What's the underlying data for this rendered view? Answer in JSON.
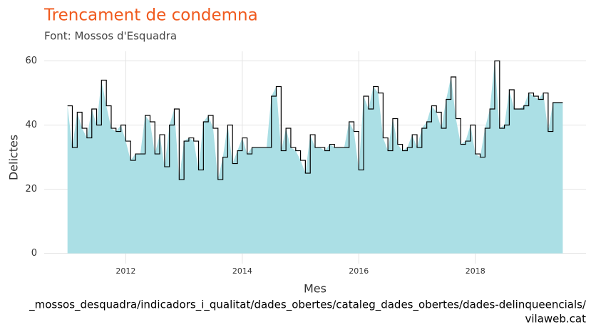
{
  "chart_data": {
    "type": "area-step",
    "title": "Trencament de condemna",
    "subtitle": "Font: Mossos d'Esquadra",
    "x_label": "Mes",
    "y_label": "Delictes",
    "caption": [
      "_mossos_desquadra/indicadors_i_qualitat/dades_obertes/cataleg_dades_obertes/dades-delinqueencials/",
      "vilaweb.cat"
    ],
    "x": [
      2011,
      2011.083,
      2011.167,
      2011.25,
      2011.333,
      2011.417,
      2011.5,
      2011.583,
      2011.667,
      2011.75,
      2011.833,
      2011.917,
      2012,
      2012.083,
      2012.167,
      2012.25,
      2012.333,
      2012.417,
      2012.5,
      2012.583,
      2012.667,
      2012.75,
      2012.833,
      2012.917,
      2013,
      2013.083,
      2013.167,
      2013.25,
      2013.333,
      2013.417,
      2013.5,
      2013.583,
      2013.667,
      2013.75,
      2013.833,
      2013.917,
      2014,
      2014.083,
      2014.167,
      2014.25,
      2014.333,
      2014.417,
      2014.5,
      2014.583,
      2014.667,
      2014.75,
      2014.833,
      2014.917,
      2015,
      2015.083,
      2015.167,
      2015.25,
      2015.333,
      2015.417,
      2015.5,
      2015.583,
      2015.667,
      2015.75,
      2015.833,
      2015.917,
      2016,
      2016.083,
      2016.167,
      2016.25,
      2016.333,
      2016.417,
      2016.5,
      2016.583,
      2016.667,
      2016.75,
      2016.833,
      2016.917,
      2017,
      2017.083,
      2017.167,
      2017.25,
      2017.333,
      2017.417,
      2017.5,
      2017.583,
      2017.667,
      2017.75,
      2017.833,
      2017.917,
      2018,
      2018.083,
      2018.167,
      2018.25,
      2018.333,
      2018.417,
      2018.5,
      2018.583,
      2018.667,
      2018.75,
      2018.833,
      2018.917,
      2019,
      2019.083,
      2019.167,
      2019.25,
      2019.333,
      2019.417
    ],
    "values": [
      46,
      33,
      44,
      39,
      36,
      45,
      40,
      54,
      46,
      39,
      38,
      40,
      35,
      29,
      31,
      31,
      43,
      41,
      31,
      37,
      27,
      40,
      45,
      23,
      35,
      36,
      35,
      26,
      41,
      43,
      39,
      23,
      30,
      40,
      28,
      32,
      36,
      31,
      33,
      33,
      33,
      33,
      49,
      52,
      32,
      39,
      33,
      32,
      29,
      25,
      37,
      33,
      33,
      32,
      34,
      33,
      33,
      33,
      41,
      38,
      26,
      49,
      45,
      52,
      50,
      36,
      32,
      42,
      34,
      32,
      33,
      37,
      33,
      39,
      41,
      46,
      44,
      39,
      48,
      55,
      42,
      34,
      35,
      40,
      31,
      30,
      39,
      45,
      60,
      39,
      40,
      51,
      45,
      45,
      46,
      50,
      49,
      48,
      50,
      38,
      47,
      47
    ],
    "area_color": "#abdfe5",
    "line_color": "#000000",
    "title_color": "#f05a1e",
    "xlim": [
      2010.6,
      2019.9
    ],
    "ylim": [
      -3.2,
      63
    ],
    "xticks": [
      2012,
      2014,
      2016,
      2018
    ],
    "yticks": [
      0,
      20,
      40,
      60
    ],
    "grid": true
  }
}
